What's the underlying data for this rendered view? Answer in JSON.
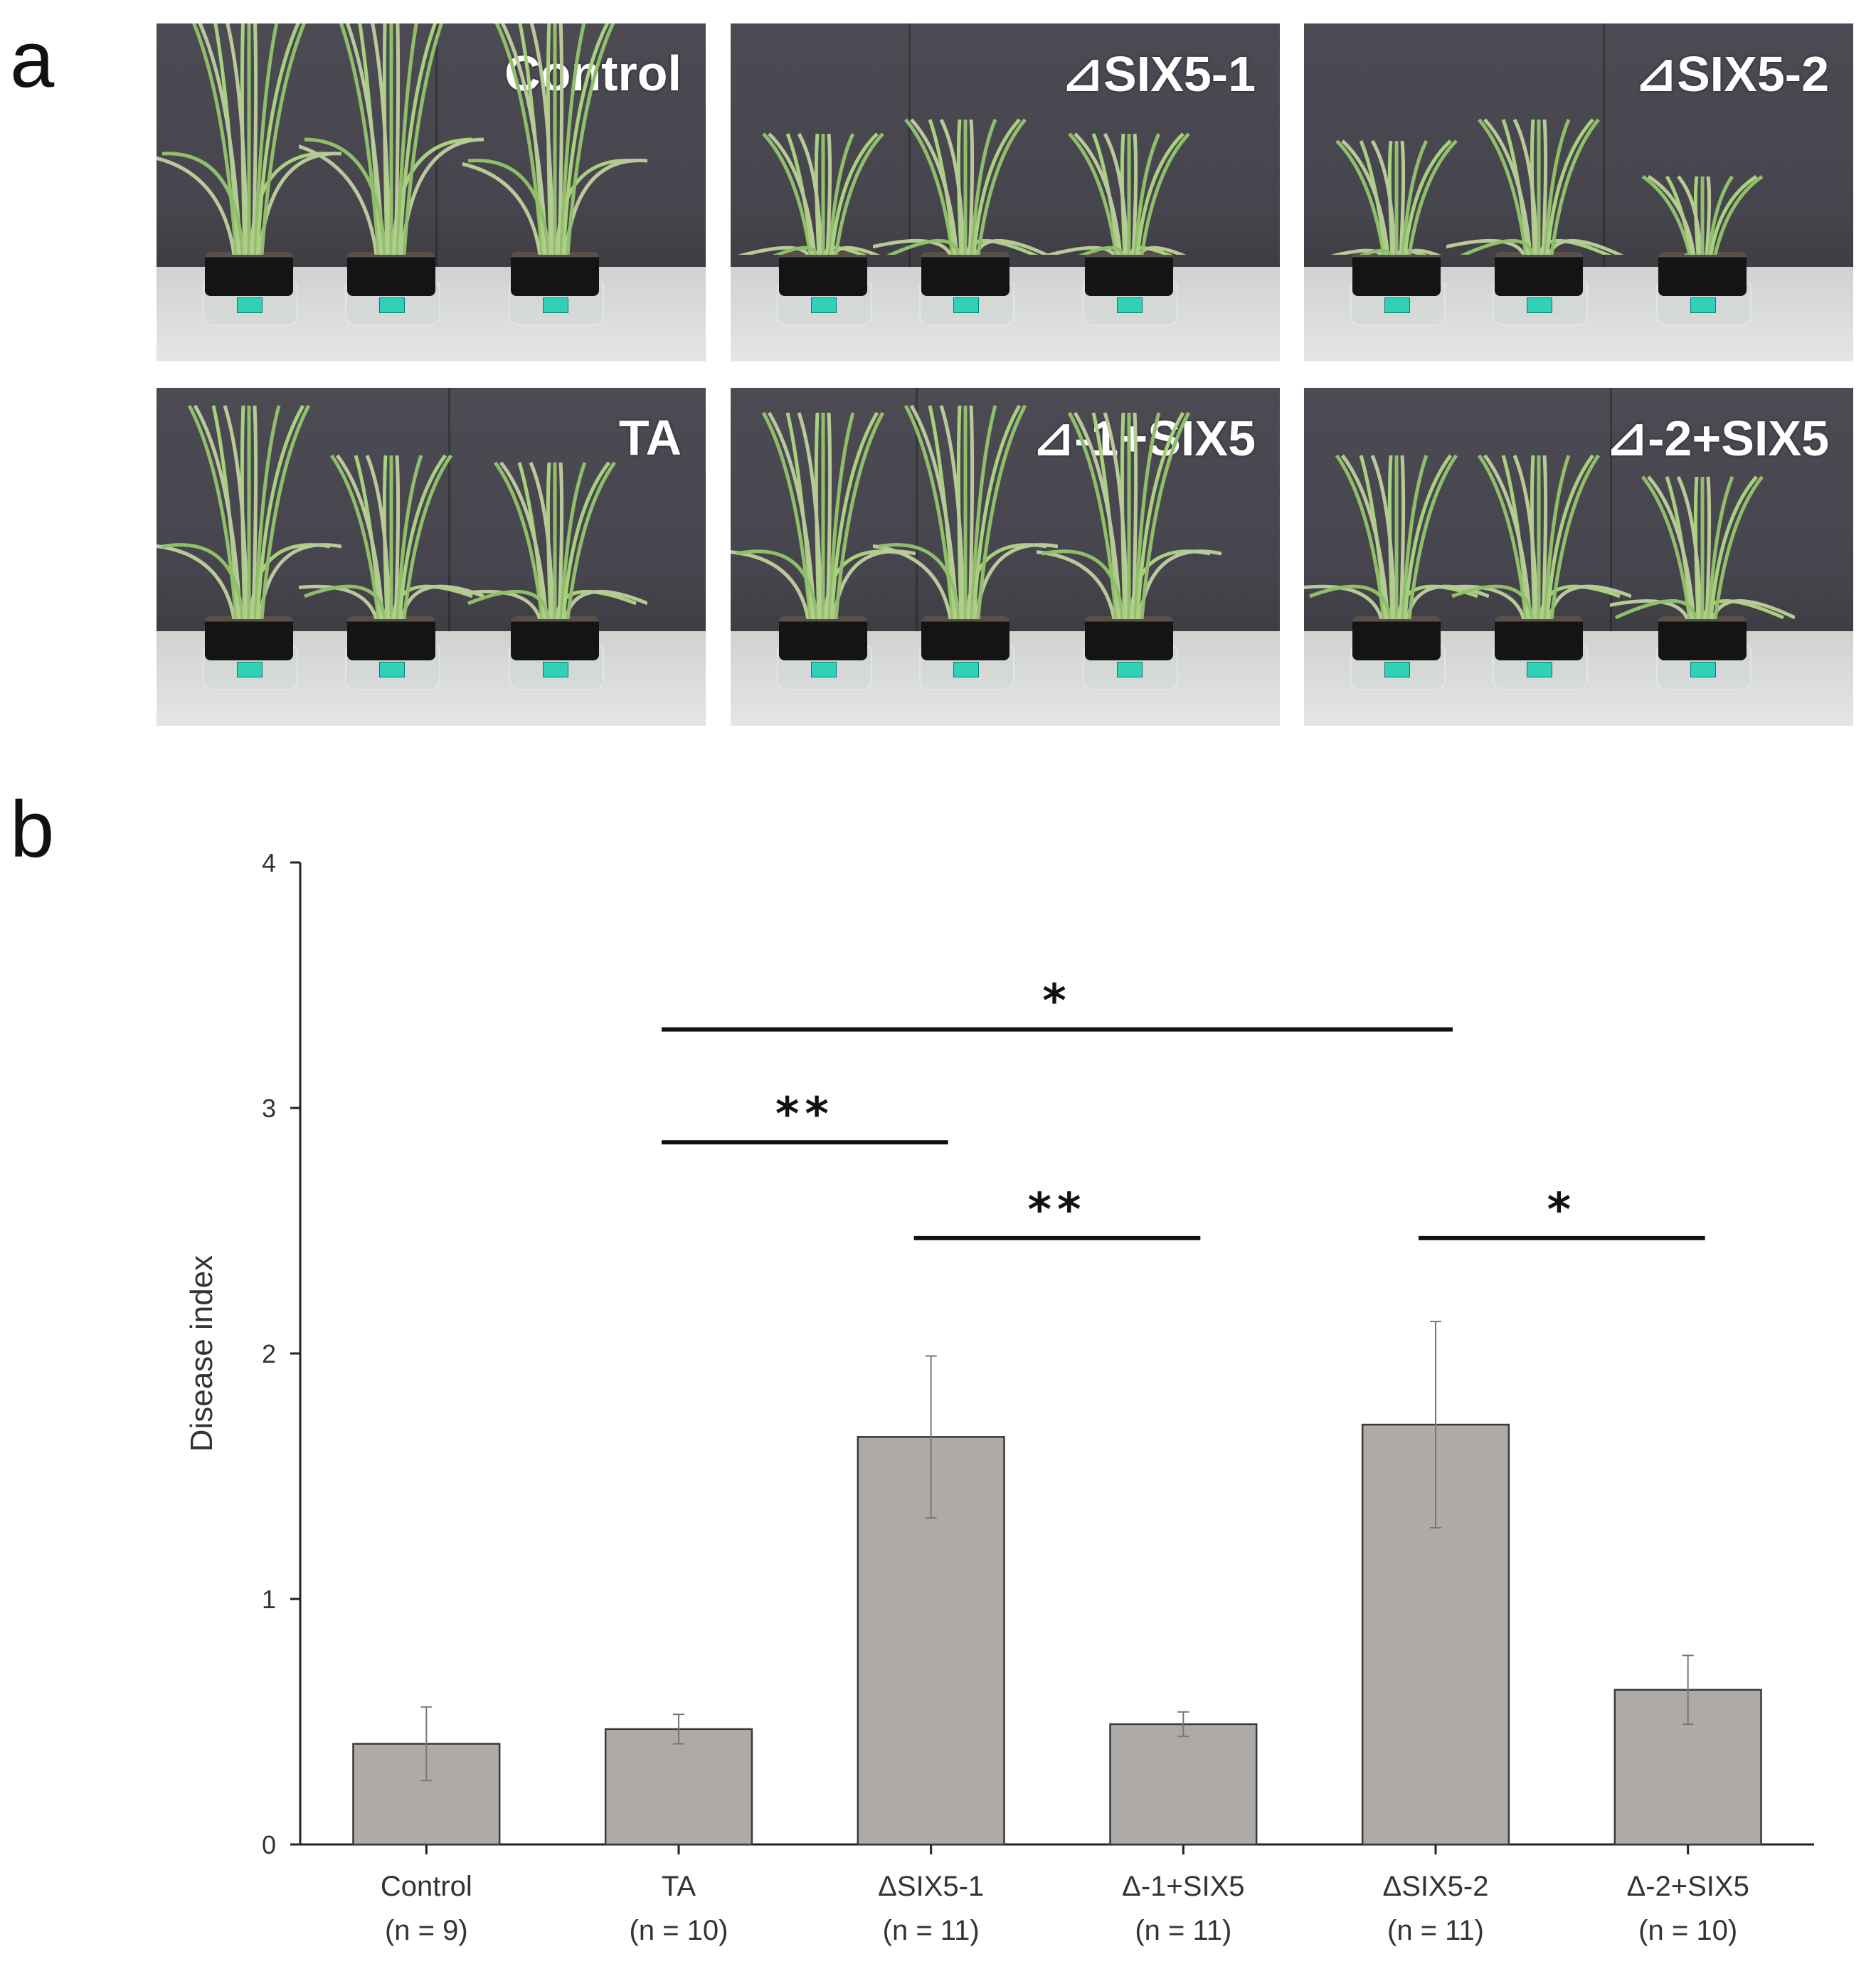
{
  "panel_a_letter": "a",
  "panel_b_letter": "b",
  "photos": [
    {
      "label": "Control"
    },
    {
      "label": "⊿SIX5-1"
    },
    {
      "label": "⊿SIX5-2"
    },
    {
      "label": "TA"
    },
    {
      "label": "⊿-1+SIX5"
    },
    {
      "label": "⊿-2+SIX5"
    }
  ],
  "chart_data": {
    "type": "bar",
    "ylabel": "Disease index",
    "xlabel": "",
    "ylim": [
      0,
      4
    ],
    "yticks": [
      "0",
      "1",
      "2",
      "3",
      "4"
    ],
    "categories": [
      {
        "name": "Control",
        "n": "(n = 9)"
      },
      {
        "name": "TA",
        "n": "(n = 10)"
      },
      {
        "name": "ΔSIX5-1",
        "n": "(n = 11)"
      },
      {
        "name": "Δ-1+SIX5",
        "n": "(n = 11)"
      },
      {
        "name": "ΔSIX5-2",
        "n": "(n = 11)"
      },
      {
        "name": "Δ-2+SIX5",
        "n": "(n = 10)"
      }
    ],
    "values": [
      0.41,
      0.47,
      1.66,
      0.49,
      1.71,
      0.63
    ],
    "errors": [
      0.15,
      0.06,
      0.33,
      0.05,
      0.42,
      0.14
    ],
    "significance": [
      {
        "from": 1,
        "to": 4,
        "y": 3.32,
        "label": "*"
      },
      {
        "from": 1,
        "to": 2,
        "y": 2.86,
        "label": "**"
      },
      {
        "from": 2,
        "to": 3,
        "y": 2.47,
        "label": "**"
      },
      {
        "from": 4,
        "to": 5,
        "y": 2.47,
        "label": "*"
      }
    ],
    "colors": {
      "bar": "#aeaaa7",
      "bar_edge": "#3a3a3a",
      "axis": "#222222"
    }
  }
}
